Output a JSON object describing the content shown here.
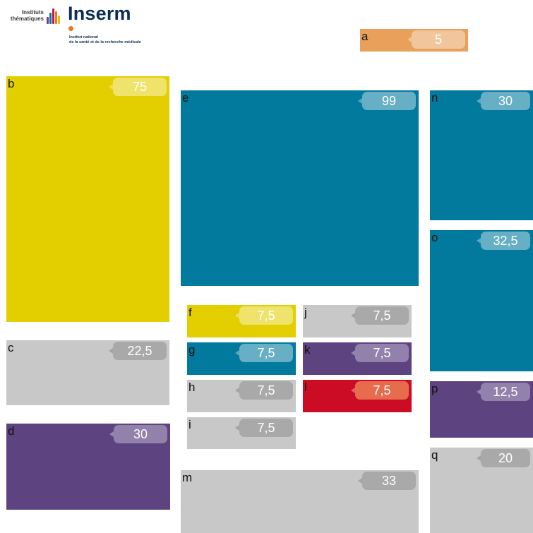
{
  "header": {
    "institutes_label": "Instituts thématiques",
    "brand": "Inserm",
    "subtitle_line1": "Institut national",
    "subtitle_line2": "de la santé et de la recherche médicale"
  },
  "colors": {
    "orange": "#e8a05b",
    "yellow": "#e3cf00",
    "gray": "#c8c8c8",
    "purple": "#5d4380",
    "teal": "#017a9e",
    "red": "#cc0b24"
  },
  "tiles": [
    {
      "label": "a",
      "value": "5",
      "color": "orange"
    },
    {
      "label": "b",
      "value": "75",
      "color": "yellow"
    },
    {
      "label": "c",
      "value": "22,5",
      "color": "gray"
    },
    {
      "label": "d",
      "value": "30",
      "color": "purple"
    },
    {
      "label": "e",
      "value": "99",
      "color": "teal"
    },
    {
      "label": "f",
      "value": "7,5",
      "color": "yellow"
    },
    {
      "label": "g",
      "value": "7,5",
      "color": "teal"
    },
    {
      "label": "h",
      "value": "7,5",
      "color": "gray"
    },
    {
      "label": "i",
      "value": "7,5",
      "color": "gray"
    },
    {
      "label": "j",
      "value": "7,5",
      "color": "gray"
    },
    {
      "label": "k",
      "value": "7,5",
      "color": "purple"
    },
    {
      "label": "l",
      "value": "7,5",
      "color": "red"
    },
    {
      "label": "m",
      "value": "33",
      "color": "gray"
    },
    {
      "label": "n",
      "value": "30",
      "color": "teal"
    },
    {
      "label": "o",
      "value": "32,5",
      "color": "teal"
    },
    {
      "label": "p",
      "value": "12,5",
      "color": "purple"
    },
    {
      "label": "q",
      "value": "20",
      "color": "gray"
    }
  ]
}
